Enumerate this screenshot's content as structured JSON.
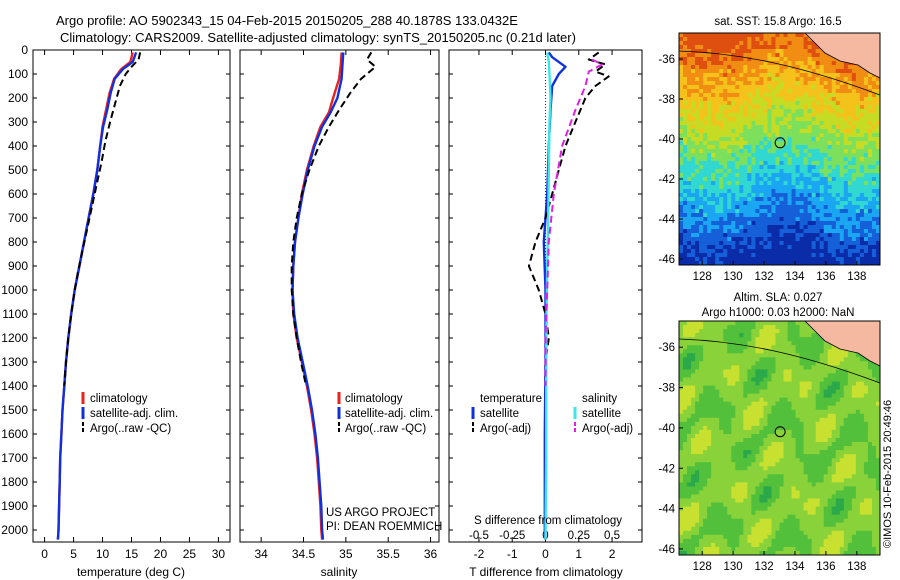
{
  "header": {
    "line1": "Argo profile: AO 5902343_15 04-Feb-2015 20150205_288 40.1878S 133.0432E",
    "line2": "Climatology: CARS2009. Satellite-adjusted climatology: synTS_20150205.nc (0.21d later)"
  },
  "credit": "©IMOS 10-Feb-2015 20:49:46",
  "colors": {
    "climatology": "#e8231e",
    "satellite": "#1030e0",
    "argo": "#000000",
    "sat_salinity": "#3fe6e6",
    "argo_salinity": "#e020e0",
    "land": "#f5b8a0"
  },
  "chart_data": [
    {
      "type": "line",
      "name": "temperature-profile",
      "xlabel": "temperature (deg C)",
      "ylabel": "",
      "xlim": [
        -2,
        32
      ],
      "ylim": [
        2050,
        0
      ],
      "xticks": [
        0,
        5,
        10,
        15,
        20,
        25,
        30
      ],
      "yticks": [
        0,
        100,
        200,
        300,
        400,
        500,
        600,
        700,
        800,
        900,
        1000,
        1100,
        1200,
        1300,
        1400,
        1500,
        1600,
        1700,
        1800,
        1900,
        2000
      ],
      "legend": [
        "climatology",
        "satellite-adj. clim.",
        "Argo(..raw -QC)"
      ],
      "legend_placement": "lower-center",
      "series": [
        {
          "name": "climatology",
          "color": "#e8231e",
          "dash": "",
          "points": [
            [
              15.2,
              10
            ],
            [
              14.8,
              50
            ],
            [
              13.2,
              80
            ],
            [
              12.0,
              120
            ],
            [
              11.2,
              180
            ],
            [
              10.6,
              250
            ],
            [
              10.0,
              320
            ],
            [
              9.6,
              400
            ],
            [
              9.1,
              500
            ],
            [
              8.4,
              600
            ],
            [
              7.6,
              700
            ],
            [
              6.8,
              800
            ],
            [
              6.0,
              900
            ],
            [
              5.2,
              1000
            ],
            [
              4.6,
              1100
            ],
            [
              4.1,
              1200
            ],
            [
              3.7,
              1300
            ],
            [
              3.4,
              1400
            ],
            [
              3.1,
              1500
            ],
            [
              2.9,
              1600
            ],
            [
              2.7,
              1700
            ],
            [
              2.6,
              1800
            ],
            [
              2.5,
              1900
            ],
            [
              2.4,
              2000
            ],
            [
              2.3,
              2040
            ]
          ]
        },
        {
          "name": "satellite-adj. clim.",
          "color": "#1030e0",
          "dash": "",
          "points": [
            [
              15.8,
              10
            ],
            [
              15.2,
              50
            ],
            [
              13.5,
              80
            ],
            [
              12.1,
              120
            ],
            [
              11.4,
              180
            ],
            [
              10.8,
              250
            ],
            [
              10.1,
              320
            ],
            [
              9.6,
              400
            ],
            [
              9.1,
              500
            ],
            [
              8.4,
              600
            ],
            [
              7.6,
              700
            ],
            [
              6.8,
              800
            ],
            [
              6.0,
              900
            ],
            [
              5.2,
              1000
            ],
            [
              4.6,
              1100
            ],
            [
              4.1,
              1200
            ],
            [
              3.7,
              1300
            ],
            [
              3.4,
              1400
            ],
            [
              3.1,
              1500
            ],
            [
              2.9,
              1600
            ],
            [
              2.7,
              1700
            ],
            [
              2.6,
              1800
            ],
            [
              2.5,
              1900
            ],
            [
              2.4,
              2000
            ],
            [
              2.3,
              2040
            ]
          ]
        },
        {
          "name": "Argo(..raw -QC)",
          "color": "#000000",
          "dash": "7,4",
          "points": [
            [
              16.5,
              10
            ],
            [
              16.2,
              40
            ],
            [
              15.0,
              70
            ],
            [
              14.0,
              100
            ],
            [
              13.0,
              150
            ],
            [
              12.2,
              220
            ],
            [
              11.3,
              300
            ],
            [
              10.5,
              380
            ],
            [
              9.8,
              470
            ],
            [
              9.0,
              560
            ],
            [
              8.2,
              650
            ],
            [
              7.4,
              740
            ],
            [
              6.6,
              830
            ],
            [
              5.8,
              920
            ],
            [
              5.2,
              1000
            ],
            [
              4.6,
              1100
            ],
            [
              4.1,
              1200
            ],
            [
              3.7,
              1300
            ],
            [
              3.4,
              1400
            ]
          ]
        }
      ]
    },
    {
      "type": "line",
      "name": "salinity-profile",
      "xlabel": "salinity",
      "ylabel": "",
      "xlim": [
        33.75,
        36.1
      ],
      "ylim": [
        2050,
        0
      ],
      "xticks": [
        34,
        34.5,
        35,
        35.5,
        36
      ],
      "legend": [
        "climatology",
        "satellite-adj. clim.",
        "Argo(..raw -QC)"
      ],
      "legend_placement": "lower-center",
      "annotation": [
        "US ARGO PROJECT",
        "PI: DEAN ROEMMICH"
      ],
      "series": [
        {
          "name": "climatology",
          "color": "#e8231e",
          "dash": "",
          "points": [
            [
              34.95,
              10
            ],
            [
              34.94,
              60
            ],
            [
              34.92,
              120
            ],
            [
              34.85,
              200
            ],
            [
              34.8,
              260
            ],
            [
              34.7,
              320
            ],
            [
              34.62,
              400
            ],
            [
              34.54,
              500
            ],
            [
              34.48,
              600
            ],
            [
              34.44,
              700
            ],
            [
              34.4,
              800
            ],
            [
              34.38,
              900
            ],
            [
              34.37,
              1000
            ],
            [
              34.38,
              1100
            ],
            [
              34.42,
              1200
            ],
            [
              34.48,
              1300
            ],
            [
              34.54,
              1400
            ],
            [
              34.59,
              1500
            ],
            [
              34.63,
              1600
            ],
            [
              34.66,
              1700
            ],
            [
              34.68,
              1800
            ],
            [
              34.7,
              1900
            ],
            [
              34.71,
              2000
            ],
            [
              34.72,
              2040
            ]
          ]
        },
        {
          "name": "satellite-adj. clim.",
          "color": "#1030e0",
          "dash": "",
          "points": [
            [
              34.97,
              10
            ],
            [
              34.96,
              60
            ],
            [
              34.95,
              120
            ],
            [
              34.9,
              200
            ],
            [
              34.82,
              260
            ],
            [
              34.72,
              320
            ],
            [
              34.63,
              400
            ],
            [
              34.55,
              500
            ],
            [
              34.49,
              600
            ],
            [
              34.44,
              700
            ],
            [
              34.4,
              800
            ],
            [
              34.38,
              900
            ],
            [
              34.37,
              1000
            ],
            [
              34.39,
              1100
            ],
            [
              34.43,
              1200
            ],
            [
              34.49,
              1300
            ],
            [
              34.55,
              1400
            ],
            [
              34.6,
              1500
            ],
            [
              34.64,
              1600
            ],
            [
              34.67,
              1700
            ],
            [
              34.69,
              1800
            ],
            [
              34.71,
              1900
            ],
            [
              34.72,
              2000
            ],
            [
              34.73,
              2040
            ]
          ]
        },
        {
          "name": "Argo(..raw -QC)",
          "color": "#000000",
          "dash": "7,4",
          "points": [
            [
              35.3,
              10
            ],
            [
              35.25,
              40
            ],
            [
              35.35,
              70
            ],
            [
              35.18,
              120
            ],
            [
              35.05,
              180
            ],
            [
              34.92,
              250
            ],
            [
              34.8,
              320
            ],
            [
              34.68,
              400
            ],
            [
              34.57,
              500
            ],
            [
              34.48,
              600
            ],
            [
              34.42,
              700
            ],
            [
              34.38,
              800
            ],
            [
              34.36,
              900
            ],
            [
              34.36,
              1000
            ],
            [
              34.38,
              1100
            ],
            [
              34.42,
              1200
            ],
            [
              34.47,
              1300
            ],
            [
              34.53,
              1400
            ]
          ]
        }
      ]
    },
    {
      "type": "line",
      "name": "difference-profile",
      "xlabel": "T difference from climatology",
      "x2label": "S difference from climatology",
      "ylabel": "",
      "xlim": [
        -2.9,
        2.9
      ],
      "ylim": [
        2050,
        0
      ],
      "xticks": [
        -2,
        -1,
        0,
        1,
        2
      ],
      "x2ticks": [
        "-0.5",
        "-0.25",
        "0",
        "0.25",
        "0.5"
      ],
      "legend_titles": [
        "temperature",
        "salinity"
      ],
      "legend": [
        "satellite",
        "Argo(-adj)",
        "satellite",
        "Argo(-adj)"
      ],
      "legend_placement": "lower-center",
      "series": [
        {
          "name": "temperature satellite",
          "color": "#1030e0",
          "dash": "",
          "points": [
            [
              0.1,
              10
            ],
            [
              0.2,
              30
            ],
            [
              0.6,
              70
            ],
            [
              0.4,
              100
            ],
            [
              0.2,
              150
            ],
            [
              0.15,
              250
            ],
            [
              0.1,
              400
            ],
            [
              0.05,
              600
            ],
            [
              -0.05,
              800
            ],
            [
              0.0,
              1000
            ],
            [
              0.0,
              1300
            ],
            [
              -0.02,
              1600
            ],
            [
              -0.02,
              2000
            ],
            [
              0.0,
              2040
            ]
          ]
        },
        {
          "name": "temperature Argo(-adj)",
          "color": "#000000",
          "dash": "7,4",
          "points": [
            [
              1.6,
              10
            ],
            [
              1.3,
              40
            ],
            [
              1.8,
              60
            ],
            [
              1.5,
              90
            ],
            [
              1.9,
              110
            ],
            [
              1.5,
              150
            ],
            [
              1.2,
              200
            ],
            [
              0.9,
              300
            ],
            [
              0.6,
              400
            ],
            [
              0.4,
              500
            ],
            [
              0.2,
              600
            ],
            [
              0.0,
              700
            ],
            [
              -0.3,
              800
            ],
            [
              -0.5,
              900
            ],
            [
              -0.2,
              1000
            ],
            [
              0.0,
              1100
            ],
            [
              0.1,
              1200
            ],
            [
              0.0,
              1300
            ],
            [
              0.0,
              1400
            ]
          ]
        },
        {
          "name": "salinity satellite",
          "color": "#3fe6e6",
          "dash": "",
          "points": [
            [
              0.05,
              10
            ],
            [
              0.1,
              50
            ],
            [
              0.12,
              100
            ],
            [
              0.15,
              200
            ],
            [
              0.12,
              300
            ],
            [
              0.1,
              500
            ],
            [
              0.08,
              700
            ],
            [
              0.05,
              900
            ],
            [
              0.03,
              1100
            ],
            [
              0.02,
              1400
            ],
            [
              0.02,
              1700
            ],
            [
              0.0,
              2040
            ]
          ]
        },
        {
          "name": "salinity Argo(-adj)",
          "color": "#e020e0",
          "dash": "7,4",
          "points": [
            [
              1.4,
              40
            ],
            [
              1.7,
              60
            ],
            [
              1.3,
              90
            ],
            [
              1.2,
              150
            ],
            [
              0.9,
              250
            ],
            [
              0.5,
              400
            ],
            [
              0.25,
              600
            ],
            [
              0.1,
              800
            ],
            [
              0.05,
              1000
            ],
            [
              0.0,
              1200
            ],
            [
              0.0,
              1400
            ]
          ]
        }
      ]
    },
    {
      "type": "heatmap",
      "name": "sst-map",
      "title": "sat. SST: 15.8  Argo: 16.5",
      "xlim": [
        126.5,
        139.5
      ],
      "ylim": [
        -46.3,
        -34.7
      ],
      "xticks": [
        128,
        130,
        132,
        134,
        136,
        138
      ],
      "yticks": [
        -36,
        -38,
        -40,
        -42,
        -44,
        -46
      ],
      "marker": {
        "lon": 133.04,
        "lat": -40.19
      },
      "colorscale": [
        "#0a2ca8",
        "#1560d8",
        "#1aa6f2",
        "#31d8d2",
        "#7de05c",
        "#c6dc24",
        "#f4c21a",
        "#f08d12",
        "#de4f10"
      ]
    },
    {
      "type": "heatmap",
      "name": "sla-map",
      "title": "Altim. SLA: 0.027",
      "subtitle": "Argo h1000: 0.03 h2000: NaN",
      "xlim": [
        126.5,
        139.5
      ],
      "ylim": [
        -46.3,
        -34.7
      ],
      "xticks": [
        128,
        130,
        132,
        134,
        136,
        138
      ],
      "yticks": [
        -36,
        -38,
        -40,
        -42,
        -44,
        -46
      ],
      "marker": {
        "lon": 133.04,
        "lat": -40.19
      },
      "colorscale": [
        "#2aa84a",
        "#52c03a",
        "#8ad23a",
        "#c8e030",
        "#f0ea2a"
      ]
    }
  ]
}
